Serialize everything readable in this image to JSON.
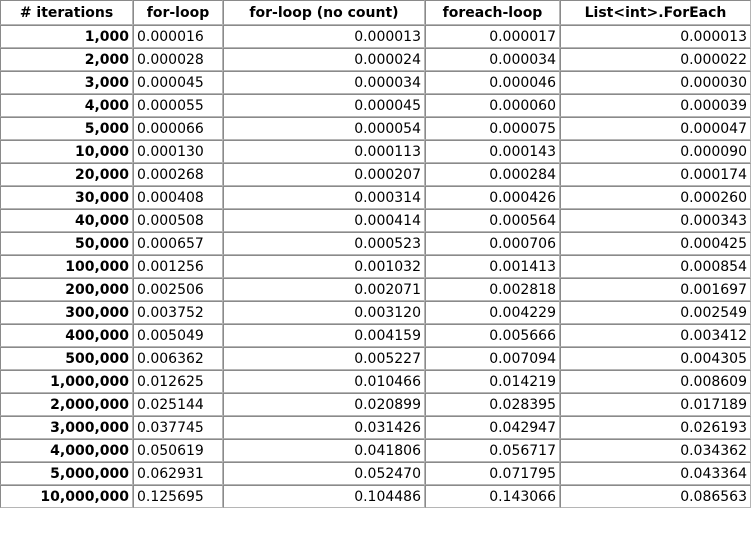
{
  "table": {
    "headers": [
      "# iterations",
      "for-loop",
      "for-loop (no count)",
      "foreach-loop",
      "List<int>.ForEach"
    ],
    "rows": [
      [
        "1,000",
        "0.000016",
        "0.000013",
        "0.000017",
        "0.000013"
      ],
      [
        "2,000",
        "0.000028",
        "0.000024",
        "0.000034",
        "0.000022"
      ],
      [
        "3,000",
        "0.000045",
        "0.000034",
        "0.000046",
        "0.000030"
      ],
      [
        "4,000",
        "0.000055",
        "0.000045",
        "0.000060",
        "0.000039"
      ],
      [
        "5,000",
        "0.000066",
        "0.000054",
        "0.000075",
        "0.000047"
      ],
      [
        "10,000",
        "0.000130",
        "0.000113",
        "0.000143",
        "0.000090"
      ],
      [
        "20,000",
        "0.000268",
        "0.000207",
        "0.000284",
        "0.000174"
      ],
      [
        "30,000",
        "0.000408",
        "0.000314",
        "0.000426",
        "0.000260"
      ],
      [
        "40,000",
        "0.000508",
        "0.000414",
        "0.000564",
        "0.000343"
      ],
      [
        "50,000",
        "0.000657",
        "0.000523",
        "0.000706",
        "0.000425"
      ],
      [
        "100,000",
        "0.001256",
        "0.001032",
        "0.001413",
        "0.000854"
      ],
      [
        "200,000",
        "0.002506",
        "0.002071",
        "0.002818",
        "0.001697"
      ],
      [
        "300,000",
        "0.003752",
        "0.003120",
        "0.004229",
        "0.002549"
      ],
      [
        "400,000",
        "0.005049",
        "0.004159",
        "0.005666",
        "0.003412"
      ],
      [
        "500,000",
        "0.006362",
        "0.005227",
        "0.007094",
        "0.004305"
      ],
      [
        "1,000,000",
        "0.012625",
        "0.010466",
        "0.014219",
        "0.008609"
      ],
      [
        "2,000,000",
        "0.025144",
        "0.020899",
        "0.028395",
        "0.017189"
      ],
      [
        "3,000,000",
        "0.037745",
        "0.031426",
        "0.042947",
        "0.026193"
      ],
      [
        "4,000,000",
        "0.050619",
        "0.041806",
        "0.056717",
        "0.034362"
      ],
      [
        "5,000,000",
        "0.062931",
        "0.052470",
        "0.071795",
        "0.043364"
      ],
      [
        "10,000,000",
        "0.125695",
        "0.104486",
        "0.143066",
        "0.086563"
      ]
    ]
  },
  "colors": {
    "border": "#8a8a8a",
    "text": "#000000",
    "background": "#ffffff"
  }
}
